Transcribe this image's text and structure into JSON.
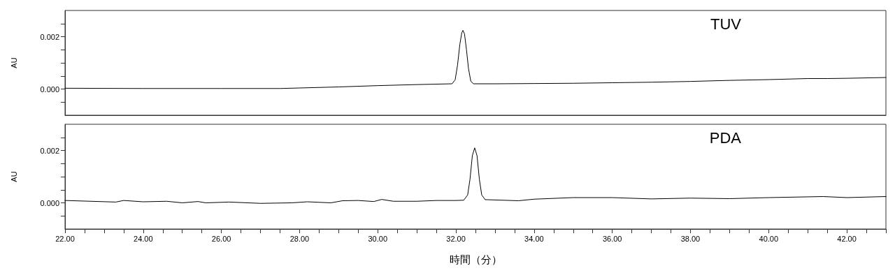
{
  "chart_data": [
    {
      "type": "line",
      "ylabel": "AU",
      "xlim": [
        22,
        43
      ],
      "ylim": [
        -0.001,
        0.003
      ],
      "tick_labels": "y",
      "grid": false,
      "legend": false,
      "marker": "none",
      "line_style": "solid",
      "yticks": [
        {
          "value": -0.0005,
          "label": null
        },
        {
          "value": 0,
          "label": "0.000"
        },
        {
          "value": 0.0005,
          "label": null
        },
        {
          "value": 0.001,
          "label": null
        },
        {
          "value": 0.0015,
          "label": null
        },
        {
          "value": 0.002,
          "label": "0.002"
        },
        {
          "value": 0.0025,
          "label": null
        }
      ],
      "series": [
        {
          "name": "TUV",
          "color": "#000000",
          "x": [
            22,
            24,
            26,
            27.5,
            28,
            29,
            30,
            31,
            31.9,
            31.98,
            32.04,
            32.1,
            32.15,
            32.18,
            32.22,
            32.27,
            32.32,
            32.38,
            32.45,
            33,
            34,
            35,
            36,
            37,
            38,
            39,
            40,
            41,
            41.5,
            42,
            43
          ],
          "values": [
            3e-05,
            2e-05,
            2e-05,
            2e-05,
            4e-05,
            8e-05,
            0.00013,
            0.00017,
            0.0002,
            0.00035,
            0.0009,
            0.0017,
            0.00215,
            0.00224,
            0.0021,
            0.0015,
            0.0008,
            0.0003,
            0.0002,
            0.0002,
            0.00021,
            0.00022,
            0.00024,
            0.00026,
            0.00029,
            0.00033,
            0.00036,
            0.0004,
            0.0004,
            0.00041,
            0.00044
          ]
        }
      ]
    },
    {
      "type": "line",
      "ylabel": "AU",
      "xlabel": "時間（分）",
      "xlim": [
        22,
        43
      ],
      "ylim": [
        -0.001,
        0.003
      ],
      "grid": false,
      "legend": false,
      "marker": "none",
      "line_style": "solid",
      "xticks": [
        {
          "value": 22,
          "label": "22.00"
        },
        {
          "value": 22.5,
          "label": null
        },
        {
          "value": 23,
          "label": null
        },
        {
          "value": 23.5,
          "label": null
        },
        {
          "value": 24,
          "label": "24.00"
        },
        {
          "value": 24.5,
          "label": null
        },
        {
          "value": 25,
          "label": null
        },
        {
          "value": 25.5,
          "label": null
        },
        {
          "value": 26,
          "label": "26.00"
        },
        {
          "value": 26.5,
          "label": null
        },
        {
          "value": 27,
          "label": null
        },
        {
          "value": 27.5,
          "label": null
        },
        {
          "value": 28,
          "label": "28.00"
        },
        {
          "value": 28.5,
          "label": null
        },
        {
          "value": 29,
          "label": null
        },
        {
          "value": 29.5,
          "label": null
        },
        {
          "value": 30,
          "label": "30.00"
        },
        {
          "value": 30.5,
          "label": null
        },
        {
          "value": 31,
          "label": null
        },
        {
          "value": 31.5,
          "label": null
        },
        {
          "value": 32,
          "label": "32.00"
        },
        {
          "value": 32.5,
          "label": null
        },
        {
          "value": 33,
          "label": null
        },
        {
          "value": 33.5,
          "label": null
        },
        {
          "value": 34,
          "label": "34.00"
        },
        {
          "value": 34.5,
          "label": null
        },
        {
          "value": 35,
          "label": null
        },
        {
          "value": 35.5,
          "label": null
        },
        {
          "value": 36,
          "label": "36.00"
        },
        {
          "value": 36.5,
          "label": null
        },
        {
          "value": 37,
          "label": null
        },
        {
          "value": 37.5,
          "label": null
        },
        {
          "value": 38,
          "label": "38.00"
        },
        {
          "value": 38.5,
          "label": null
        },
        {
          "value": 39,
          "label": null
        },
        {
          "value": 39.5,
          "label": null
        },
        {
          "value": 40,
          "label": "40.00"
        },
        {
          "value": 40.5,
          "label": null
        },
        {
          "value": 41,
          "label": null
        },
        {
          "value": 41.5,
          "label": null
        },
        {
          "value": 42,
          "label": "42.00"
        },
        {
          "value": 42.5,
          "label": null
        },
        {
          "value": 43,
          "label": null
        }
      ],
      "yticks": [
        {
          "value": -0.0005,
          "label": null
        },
        {
          "value": 0,
          "label": "0.000"
        },
        {
          "value": 0.0005,
          "label": null
        },
        {
          "value": 0.001,
          "label": null
        },
        {
          "value": 0.0015,
          "label": null
        },
        {
          "value": 0.002,
          "label": "0.002"
        },
        {
          "value": 0.0025,
          "label": null
        }
      ],
      "series": [
        {
          "name": "PDA",
          "color": "#000000",
          "x": [
            22,
            23.3,
            23.5,
            24,
            24.6,
            25,
            25.4,
            25.6,
            26.2,
            27,
            27.8,
            28.2,
            28.8,
            29.1,
            29.5,
            29.9,
            30.1,
            30.4,
            31,
            31.5,
            32,
            32.2,
            32.3,
            32.36,
            32.42,
            32.48,
            32.54,
            32.6,
            32.66,
            32.75,
            32.8,
            33.6,
            34,
            35,
            36,
            37,
            38,
            39,
            40,
            41.4,
            42,
            43
          ],
          "values": [
            9e-05,
            3e-05,
            9e-05,
            4e-05,
            6e-05,
            0,
            5e-05,
            0,
            3e-05,
            -2e-05,
            0,
            4e-05,
            0,
            8e-05,
            9e-05,
            5e-05,
            0.00013,
            6e-05,
            6e-05,
            9e-05,
            9e-05,
            0.0001,
            0.0003,
            0.0009,
            0.0018,
            0.0021,
            0.0018,
            0.0009,
            0.0003,
            0.00012,
            0.00012,
            8e-05,
            0.00014,
            0.0002,
            0.0002,
            0.00015,
            0.00018,
            0.00016,
            0.0002,
            0.00024,
            0.0002,
            0.00024
          ]
        }
      ]
    }
  ]
}
